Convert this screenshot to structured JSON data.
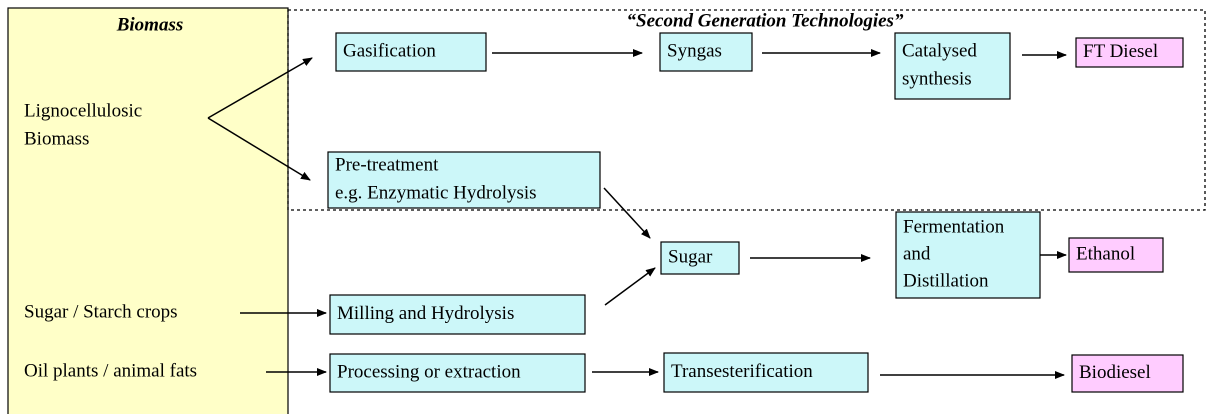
{
  "panel": {
    "title": "Biomass",
    "sources": [
      [
        "Lignocellulosic",
        "Biomass"
      ],
      [
        "Sugar / Starch crops"
      ],
      [
        "Oil plants / animal fats"
      ]
    ]
  },
  "region": {
    "title": "“Second Generation Technologies”"
  },
  "nodes": [
    {
      "lines": [
        "Gasification"
      ]
    },
    {
      "lines": [
        "Syngas"
      ]
    },
    {
      "lines": [
        "Catalysed",
        "synthesis"
      ]
    },
    {
      "lines": [
        "FT Diesel"
      ]
    },
    {
      "lines": [
        "Pre-treatment",
        "e.g. Enzymatic Hydrolysis"
      ]
    },
    {
      "lines": [
        "Sugar"
      ]
    },
    {
      "lines": [
        "Fermentation",
        "and",
        "Distillation"
      ]
    },
    {
      "lines": [
        "Ethanol"
      ]
    },
    {
      "lines": [
        "Milling and Hydrolysis"
      ]
    },
    {
      "lines": [
        "Processing or extraction"
      ]
    },
    {
      "lines": [
        "Transesterification"
      ]
    },
    {
      "lines": [
        "Biodiesel"
      ]
    }
  ]
}
